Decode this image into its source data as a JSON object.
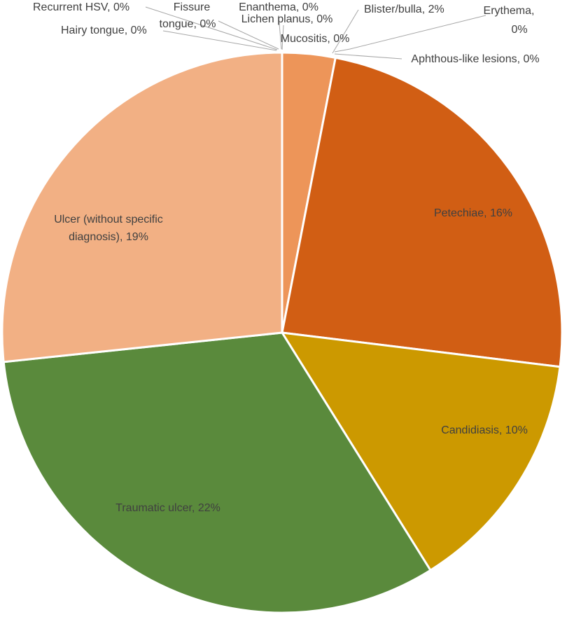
{
  "chart_data": {
    "type": "pie",
    "title": "",
    "slices": [
      {
        "label": "Blister/bulla, 2%",
        "category": "Blister/bulla",
        "value": 2,
        "color": "#ED9559"
      },
      {
        "label": "Petechiae, 16%",
        "category": "Petechiae",
        "value": 16,
        "color": "#D15E14"
      },
      {
        "label": "Candidiasis, 10%",
        "category": "Candidiasis",
        "value": 10,
        "color": "#CC9900"
      },
      {
        "label": "Traumatic ulcer, 22%",
        "category": "Traumatic ulcer",
        "value": 22,
        "color": "#5A8A3C"
      },
      {
        "label": "Ulcer (without specific diagnosis), 19%",
        "category": "Ulcer (without specific diagnosis)",
        "value": 19,
        "color": "#F2B084"
      },
      {
        "label": "Hairy tongue, 0%",
        "category": "Hairy tongue",
        "value": 0,
        "color": "#C0C0C0"
      },
      {
        "label": "Recurrent HSV, 0%",
        "category": "Recurrent HSV",
        "value": 0,
        "color": "#C0C0C0"
      },
      {
        "label": "Fissure tongue, 0%",
        "category": "Fissure tongue",
        "value": 0,
        "color": "#C0C0C0"
      },
      {
        "label": "Enanthema, 0%",
        "category": "Enanthema",
        "value": 0,
        "color": "#C0C0C0"
      },
      {
        "label": "Lichen planus, 0%",
        "category": "Lichen planus",
        "value": 0,
        "color": "#C0C0C0"
      },
      {
        "label": "Mucositis, 0%",
        "category": "Mucositis",
        "value": 0,
        "color": "#C0C0C0"
      },
      {
        "label": "Erythema, 0%",
        "category": "Erythema",
        "value": 0,
        "color": "#C0C0C0"
      },
      {
        "label": "Aphthous-like lesions, 0%",
        "category": "Aphthous-like lesions",
        "value": 0,
        "color": "#C0C0C0"
      }
    ],
    "legend": "none",
    "data_labels": "category name and percent"
  }
}
